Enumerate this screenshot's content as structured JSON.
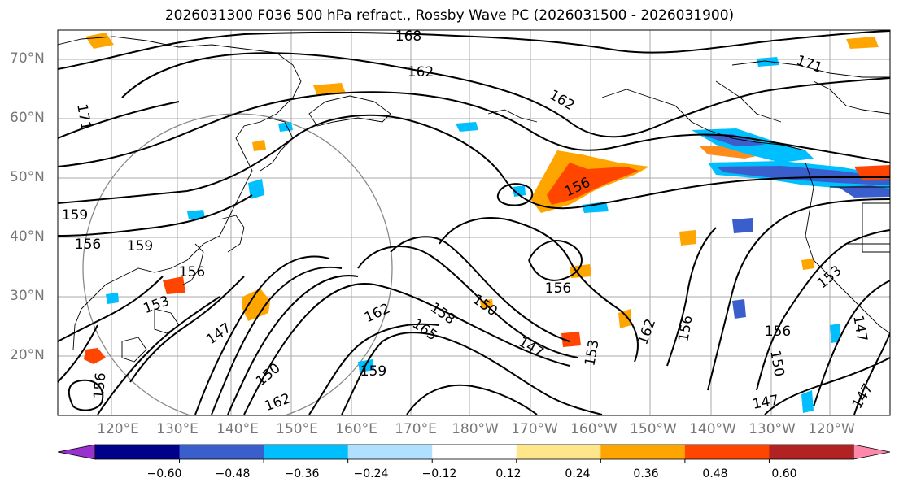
{
  "title": "2026031300 F036 500 hPa refract., Rossby Wave PC (2026031500 - 2026031900)",
  "map": {
    "lat_labels": [
      "70°N",
      "60°N",
      "50°N",
      "40°N",
      "30°N",
      "20°N"
    ],
    "lon_labels": [
      "120°E",
      "130°E",
      "140°E",
      "150°E",
      "160°E",
      "170°E",
      "180°W",
      "170°W",
      "160°W",
      "150°W",
      "140°W",
      "130°W",
      "120°W"
    ],
    "contour_labels": [
      "168",
      "162",
      "171",
      "162",
      "171",
      "159",
      "156",
      "159",
      "156",
      "156",
      "156",
      "153",
      "147",
      "150",
      "162",
      "165",
      "158",
      "150",
      "147",
      "159",
      "162",
      "153",
      "162",
      "156",
      "156",
      "150",
      "147",
      "147",
      "153",
      "147",
      "156"
    ]
  },
  "colorbar": {
    "ticks": [
      "−0.60",
      "−0.48",
      "−0.36",
      "−0.24",
      "−0.12",
      "0.12",
      "0.24",
      "0.36",
      "0.48",
      "0.60"
    ],
    "colors": [
      "#9932cc",
      "#00008b",
      "#3a5fcd",
      "#00bfff",
      "#b0e0ff",
      "#ffffff",
      "#ffe68a",
      "#ffa500",
      "#ff4500",
      "#b22222",
      "#ff88aa"
    ]
  }
}
